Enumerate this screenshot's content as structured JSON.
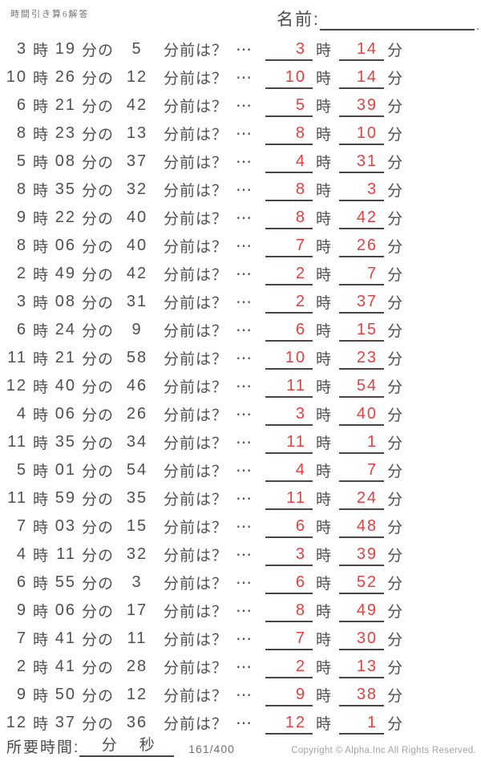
{
  "page": {
    "title": "時間引き算6解答",
    "name_label": "名前:",
    "name_line_end": "."
  },
  "labels": {
    "hour": "時",
    "minute_of": "分の",
    "minutes_before": "分前は？",
    "ellipsis": "⋯",
    "minute": "分"
  },
  "problems": [
    {
      "h": "3",
      "m": "19",
      "sub": "5",
      "ans_h": "3",
      "ans_m": "14"
    },
    {
      "h": "10",
      "m": "26",
      "sub": "12",
      "ans_h": "10",
      "ans_m": "14"
    },
    {
      "h": "6",
      "m": "21",
      "sub": "42",
      "ans_h": "5",
      "ans_m": "39"
    },
    {
      "h": "8",
      "m": "23",
      "sub": "13",
      "ans_h": "8",
      "ans_m": "10"
    },
    {
      "h": "5",
      "m": "08",
      "sub": "37",
      "ans_h": "4",
      "ans_m": "31"
    },
    {
      "h": "8",
      "m": "35",
      "sub": "32",
      "ans_h": "8",
      "ans_m": "3"
    },
    {
      "h": "9",
      "m": "22",
      "sub": "40",
      "ans_h": "8",
      "ans_m": "42"
    },
    {
      "h": "8",
      "m": "06",
      "sub": "40",
      "ans_h": "7",
      "ans_m": "26"
    },
    {
      "h": "2",
      "m": "49",
      "sub": "42",
      "ans_h": "2",
      "ans_m": "7"
    },
    {
      "h": "3",
      "m": "08",
      "sub": "31",
      "ans_h": "2",
      "ans_m": "37"
    },
    {
      "h": "6",
      "m": "24",
      "sub": "9",
      "ans_h": "6",
      "ans_m": "15"
    },
    {
      "h": "11",
      "m": "21",
      "sub": "58",
      "ans_h": "10",
      "ans_m": "23"
    },
    {
      "h": "12",
      "m": "40",
      "sub": "46",
      "ans_h": "11",
      "ans_m": "54"
    },
    {
      "h": "4",
      "m": "06",
      "sub": "26",
      "ans_h": "3",
      "ans_m": "40"
    },
    {
      "h": "11",
      "m": "35",
      "sub": "34",
      "ans_h": "11",
      "ans_m": "1"
    },
    {
      "h": "5",
      "m": "01",
      "sub": "54",
      "ans_h": "4",
      "ans_m": "7"
    },
    {
      "h": "11",
      "m": "59",
      "sub": "35",
      "ans_h": "11",
      "ans_m": "24"
    },
    {
      "h": "7",
      "m": "03",
      "sub": "15",
      "ans_h": "6",
      "ans_m": "48"
    },
    {
      "h": "4",
      "m": "11",
      "sub": "32",
      "ans_h": "3",
      "ans_m": "39"
    },
    {
      "h": "6",
      "m": "55",
      "sub": "3",
      "ans_h": "6",
      "ans_m": "52"
    },
    {
      "h": "9",
      "m": "06",
      "sub": "17",
      "ans_h": "8",
      "ans_m": "49"
    },
    {
      "h": "7",
      "m": "41",
      "sub": "11",
      "ans_h": "7",
      "ans_m": "30"
    },
    {
      "h": "2",
      "m": "41",
      "sub": "28",
      "ans_h": "2",
      "ans_m": "13"
    },
    {
      "h": "9",
      "m": "50",
      "sub": "12",
      "ans_h": "9",
      "ans_m": "38"
    },
    {
      "h": "12",
      "m": "37",
      "sub": "36",
      "ans_h": "12",
      "ans_m": "1"
    }
  ],
  "footer": {
    "elapsed_label": "所要時間:",
    "minutes_label": "分",
    "seconds_label": "秒",
    "page_number": "161/400",
    "copyright": "Copyright © Alpha.Inc All Rights Reserved."
  },
  "colors": {
    "answer_red": "#e64040",
    "text_dark": "#4f4f4f",
    "line_dark": "#4a4242",
    "muted_gray": "#a3a3a3"
  }
}
